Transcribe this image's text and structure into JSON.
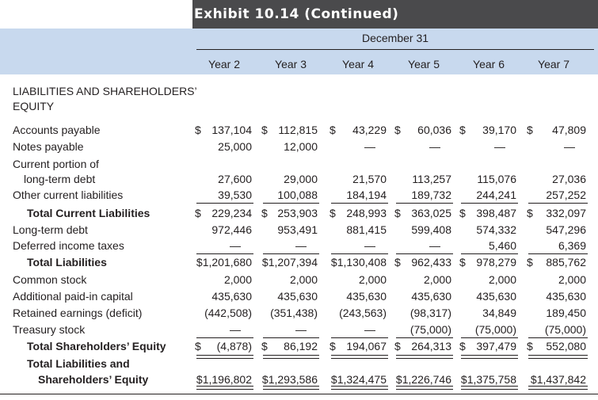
{
  "exhibit": {
    "title": "Exhibit 10.14 (Continued)"
  },
  "header": {
    "date_label": "December 31",
    "columns": [
      "Year 2",
      "Year 3",
      "Year 4",
      "Year 5",
      "Year 6",
      "Year 7"
    ]
  },
  "section_label": "LIABILITIES AND SHAREHOLDERS’ EQUITY",
  "rows": [
    {
      "id": "accounts-payable",
      "label": "Accounts payable",
      "bold": false,
      "indent": false,
      "values": [
        "$",
        "137,104",
        "$",
        "112,815",
        "$",
        "43,229",
        "$",
        "60,036",
        "$",
        "39,170",
        "$",
        "47,809"
      ]
    },
    {
      "id": "notes-payable",
      "label": "Notes payable",
      "bold": false,
      "indent": false,
      "values": [
        "",
        "25,000",
        "",
        "12,000",
        "",
        "—",
        "",
        "—",
        "",
        "—",
        "",
        "—"
      ]
    },
    {
      "id": "current-portion",
      "label": "Current portion of",
      "label2": "long-term debt",
      "bold": false,
      "indent": false,
      "values": [
        "",
        "27,600",
        "",
        "29,000",
        "",
        "21,570",
        "",
        "113,257",
        "",
        "115,076",
        "",
        "27,036"
      ]
    },
    {
      "id": "other-current",
      "label": "Other current liabilities",
      "bold": false,
      "indent": false,
      "values": [
        "",
        "39,530",
        "",
        "100,088",
        "",
        "184,194",
        "",
        "189,732",
        "",
        "244,241",
        "",
        "257,252"
      ]
    },
    {
      "id": "total-current",
      "label": "Total Current Liabilities",
      "bold": true,
      "indent": true,
      "values": [
        "$",
        "229,234",
        "$",
        "253,903",
        "$",
        "248,993",
        "$",
        "363,025",
        "$",
        "398,487",
        "$",
        "332,097"
      ]
    },
    {
      "id": "long-term-debt",
      "label": "Long-term debt",
      "bold": false,
      "indent": false,
      "values": [
        "",
        "972,446",
        "",
        "953,491",
        "",
        "881,415",
        "",
        "599,408",
        "",
        "574,332",
        "",
        "547,296"
      ]
    },
    {
      "id": "deferred-taxes",
      "label": "Deferred income taxes",
      "bold": false,
      "indent": false,
      "values": [
        "",
        "—",
        "",
        "—",
        "",
        "—",
        "",
        "—",
        "",
        "5,460",
        "",
        "6,369"
      ]
    },
    {
      "id": "total-liabilities",
      "label": "Total Liabilities",
      "bold": true,
      "indent": true,
      "values": [
        "",
        "$1,201,680",
        "",
        "$1,207,394",
        "",
        "$1,130,408",
        "$",
        "962,433",
        "$",
        "978,279",
        "$",
        "885,762"
      ]
    },
    {
      "id": "common-stock",
      "label": "Common stock",
      "bold": false,
      "indent": false,
      "values": [
        "",
        "2,000",
        "",
        "2,000",
        "",
        "2,000",
        "",
        "2,000",
        "",
        "2,000",
        "",
        "2,000"
      ]
    },
    {
      "id": "apic",
      "label": "Additional paid-in capital",
      "bold": false,
      "indent": false,
      "values": [
        "",
        "435,630",
        "",
        "435,630",
        "",
        "435,630",
        "",
        "435,630",
        "",
        "435,630",
        "",
        "435,630"
      ]
    },
    {
      "id": "retained-earnings",
      "label": "Retained earnings (deficit)",
      "bold": false,
      "indent": false,
      "values": [
        "",
        "(442,508)",
        "",
        "(351,438)",
        "",
        "(243,563)",
        "",
        "(98,317)",
        "",
        "34,849",
        "",
        "189,450"
      ]
    },
    {
      "id": "treasury-stock",
      "label": "Treasury stock",
      "bold": false,
      "indent": false,
      "values": [
        "",
        "—",
        "",
        "—",
        "",
        "—",
        "",
        "(75,000)",
        "",
        "(75,000)",
        "",
        "(75,000)"
      ]
    },
    {
      "id": "total-equity",
      "label": "Total Shareholders’ Equity",
      "bold": true,
      "indent": true,
      "values": [
        "$",
        "(4,878)",
        "$",
        "86,192",
        "$",
        "194,067",
        "$",
        "264,313",
        "$",
        "397,479",
        "$",
        "552,080"
      ]
    },
    {
      "id": "total-liab-equity",
      "label": "Total Liabilities and",
      "label2": "Shareholders’ Equity",
      "bold": true,
      "indent": true,
      "values": [
        "",
        "$1,196,802",
        "",
        "$1,293,586",
        "",
        "$1,324,475",
        "",
        "$1,226,746",
        "",
        "$1,375,758",
        "",
        "$1,437,842"
      ]
    }
  ]
}
